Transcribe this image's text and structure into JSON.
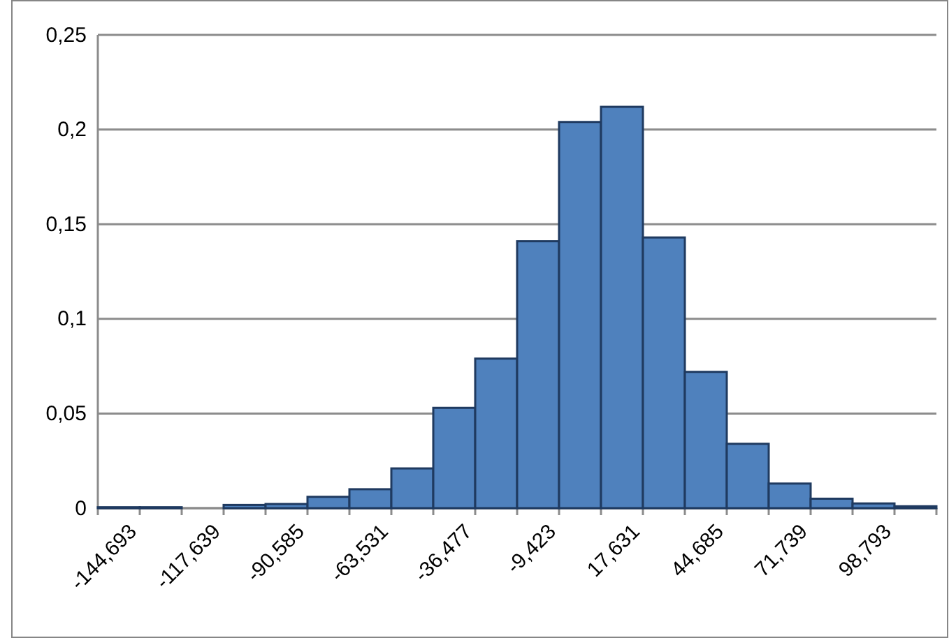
{
  "chart_data": {
    "type": "bar",
    "categories": [
      "-144,693",
      null,
      "-117,639",
      null,
      "-90,585",
      null,
      "-63,531",
      null,
      "-36,477",
      null,
      "-9,423",
      null,
      "17,631",
      null,
      "44,685",
      null,
      "71,739",
      null,
      "98,793",
      null
    ],
    "series": [
      {
        "color": "#4f81bd",
        "values": [
          0.0005,
          0.0005,
          0,
          0.0017,
          0.0022,
          0.006,
          0.01,
          0.021,
          0.053,
          0.079,
          0.141,
          0.204,
          0.212,
          0.143,
          0.072,
          0.034,
          0.013,
          0.005,
          0.0025,
          0.001
        ]
      }
    ],
    "ylim": [
      0,
      0.25
    ],
    "yticks": [
      {
        "value": 0,
        "label": "0"
      },
      {
        "value": 0.05,
        "label": "0,05"
      },
      {
        "value": 0.1,
        "label": "0,1"
      },
      {
        "value": 0.15,
        "label": "0,15"
      },
      {
        "value": 0.2,
        "label": "0,2"
      },
      {
        "value": 0.25,
        "label": "0,25"
      }
    ],
    "grid": "y"
  }
}
